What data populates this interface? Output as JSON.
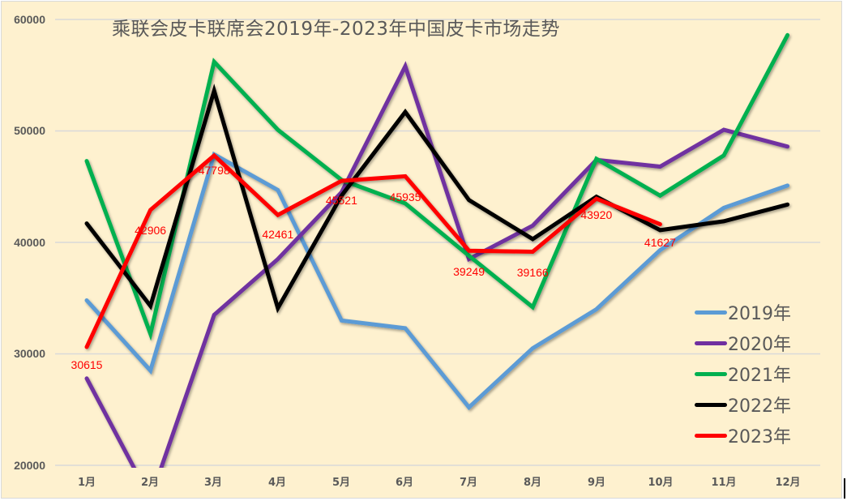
{
  "chart_data": {
    "type": "line",
    "title": "乘联会皮卡联席会2019年-2023年中国皮卡市场走势",
    "xlabel": "",
    "ylabel": "",
    "ylim": [
      20000,
      60000
    ],
    "yticks": [
      "60000",
      "50000",
      "40000",
      "30000",
      "20000"
    ],
    "grid": true,
    "legend_position": "right-bottom inside",
    "categories": [
      "1月",
      "2月",
      "3月",
      "4月",
      "5月",
      "6月",
      "7月",
      "8月",
      "9月",
      "10月",
      "11月",
      "12月"
    ],
    "series": [
      {
        "name": "2019年",
        "color": "#5B9BD5",
        "values": [
          34800,
          28500,
          47900,
          44700,
          33000,
          32300,
          25200,
          30500,
          34000,
          39300,
          43100,
          45100
        ]
      },
      {
        "name": "2020年",
        "color": "#7030A0",
        "values": [
          27800,
          17000,
          33500,
          38500,
          44500,
          55800,
          38500,
          41500,
          47400,
          46800,
          50100,
          48600
        ]
      },
      {
        "name": "2021年",
        "color": "#00B050",
        "values": [
          47300,
          31800,
          56200,
          50100,
          45600,
          43500,
          38800,
          34200,
          47500,
          44200,
          47800,
          58600
        ]
      },
      {
        "name": "2022年",
        "color": "#000000",
        "values": [
          41700,
          34300,
          53600,
          34100,
          44200,
          51700,
          43800,
          40300,
          44100,
          41100,
          41900,
          43400
        ]
      },
      {
        "name": "2023年",
        "color": "#FF0000",
        "values": [
          30615,
          42906,
          47798,
          42461,
          45521,
          45935,
          39249,
          39166,
          43920,
          41627
        ],
        "data_labels": [
          "30615",
          "42906",
          "47798",
          "42461",
          "45521",
          "45935",
          "39249",
          "39166",
          "43920",
          "41627"
        ]
      }
    ]
  }
}
